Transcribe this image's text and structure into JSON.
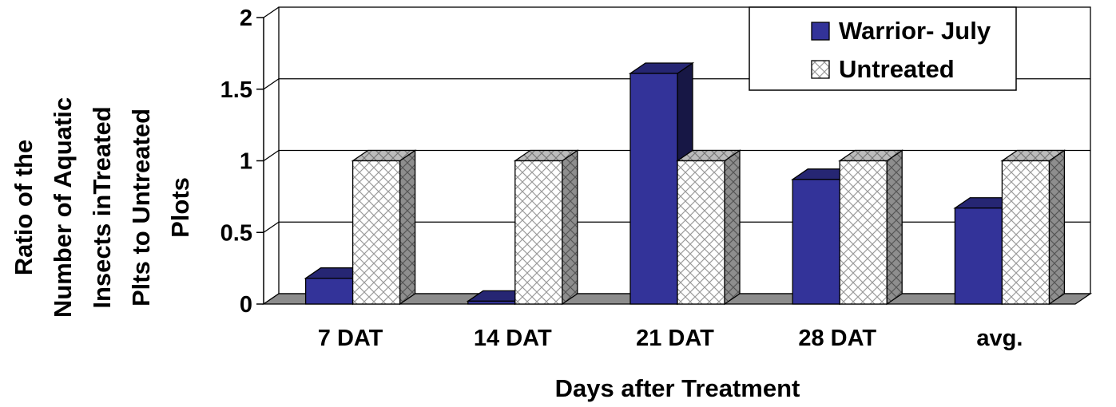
{
  "chart_data": {
    "type": "bar",
    "style": "3d-clustered-column",
    "title": "",
    "xlabel": "Days after Treatment",
    "ylabel_lines": [
      "Ratio of the",
      "Number of Aquatic",
      "Insects inTreated",
      "Plts to Untreated",
      "Plots"
    ],
    "categories": [
      "7 DAT",
      "14 DAT",
      "21 DAT",
      "28 DAT",
      "avg."
    ],
    "series": [
      {
        "name": "Warrior- July",
        "values": [
          0.18,
          0.02,
          1.61,
          0.87,
          0.67
        ],
        "color": "#333399"
      },
      {
        "name": "Untreated",
        "values": [
          1.0,
          1.0,
          1.0,
          1.0,
          1.0
        ],
        "color": "#ffffff",
        "pattern": "crosshatch"
      }
    ],
    "yticks": [
      "0",
      "0.5",
      "1",
      "1.5",
      "2"
    ],
    "ylim": [
      0,
      2
    ],
    "grid": true,
    "legend_position": "top-right"
  }
}
